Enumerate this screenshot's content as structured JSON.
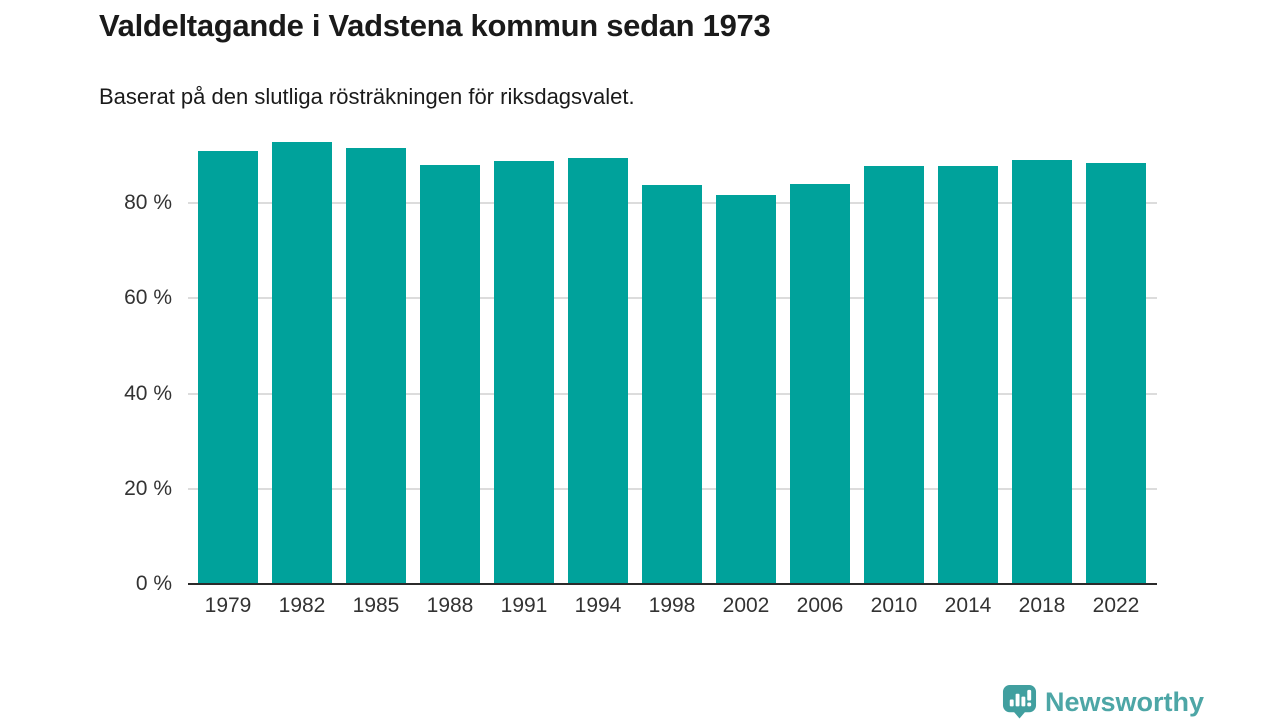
{
  "header": {
    "title": "Valdeltagande i Vadstena kommun sedan 1973",
    "subtitle": "Baserat på den slutliga rösträkningen för riksdagsvalet."
  },
  "chart_data": {
    "type": "bar",
    "title": "Valdeltagande i Vadstena kommun sedan 1973",
    "subtitle": "Baserat på den slutliga rösträkningen för riksdagsvalet.",
    "categories": [
      "1979",
      "1982",
      "1985",
      "1988",
      "1991",
      "1994",
      "1998",
      "2002",
      "2006",
      "2010",
      "2014",
      "2018",
      "2022"
    ],
    "values": [
      91.0,
      92.9,
      91.7,
      88.0,
      88.9,
      89.6,
      83.8,
      81.8,
      84.1,
      87.8,
      87.9,
      89.0,
      88.4
    ],
    "unit": "%",
    "xlabel": "",
    "ylabel": "",
    "ylim": [
      0,
      100
    ],
    "yticks": [
      0,
      20,
      40,
      60,
      80
    ],
    "ytick_labels": [
      "0 %",
      "20 %",
      "40 %",
      "60 %",
      "80 %"
    ],
    "grid": "horizontal gridlines at 20/40/60/80, light gray, behind bars",
    "legend": "none",
    "bar_color": "#00a29b",
    "axis_line_color": "#2b2b2b",
    "gridline_color": "#dcdcdc",
    "tick_label_color": "#333333"
  },
  "footer": {
    "brand": "Newsworthy",
    "brand_color": "#4da6a6",
    "logo_icon": "bar-chart-speech-bubble-icon"
  }
}
